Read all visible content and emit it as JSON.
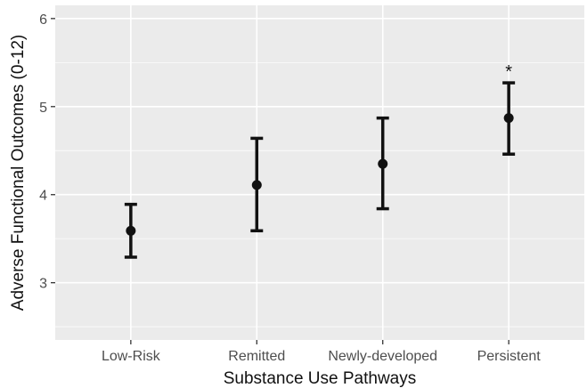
{
  "chart_data": {
    "type": "errorbar",
    "title": "",
    "xlabel": "Substance Use Pathways",
    "ylabel": "Adverse Functional Outcomes (0-12)",
    "categories": [
      "Low-Risk",
      "Remitted",
      "Newly-developed",
      "Persistent"
    ],
    "series": [
      {
        "values": [
          3.59,
          4.11,
          4.35,
          4.87
        ],
        "lower": [
          3.29,
          3.59,
          3.84,
          4.46
        ],
        "upper": [
          3.89,
          4.64,
          4.87,
          5.27
        ]
      }
    ],
    "ylim": [
      2.35,
      6.15
    ],
    "yticks": [
      3,
      4,
      5,
      6
    ],
    "grid": true,
    "legend": "none",
    "annotations": [
      {
        "category": "Persistent",
        "text": "*"
      }
    ],
    "colors": {
      "panel_background": "#ebebeb",
      "grid_major": "#ffffff",
      "mark": "#111111",
      "tick_text": "#4d4d4d"
    }
  }
}
